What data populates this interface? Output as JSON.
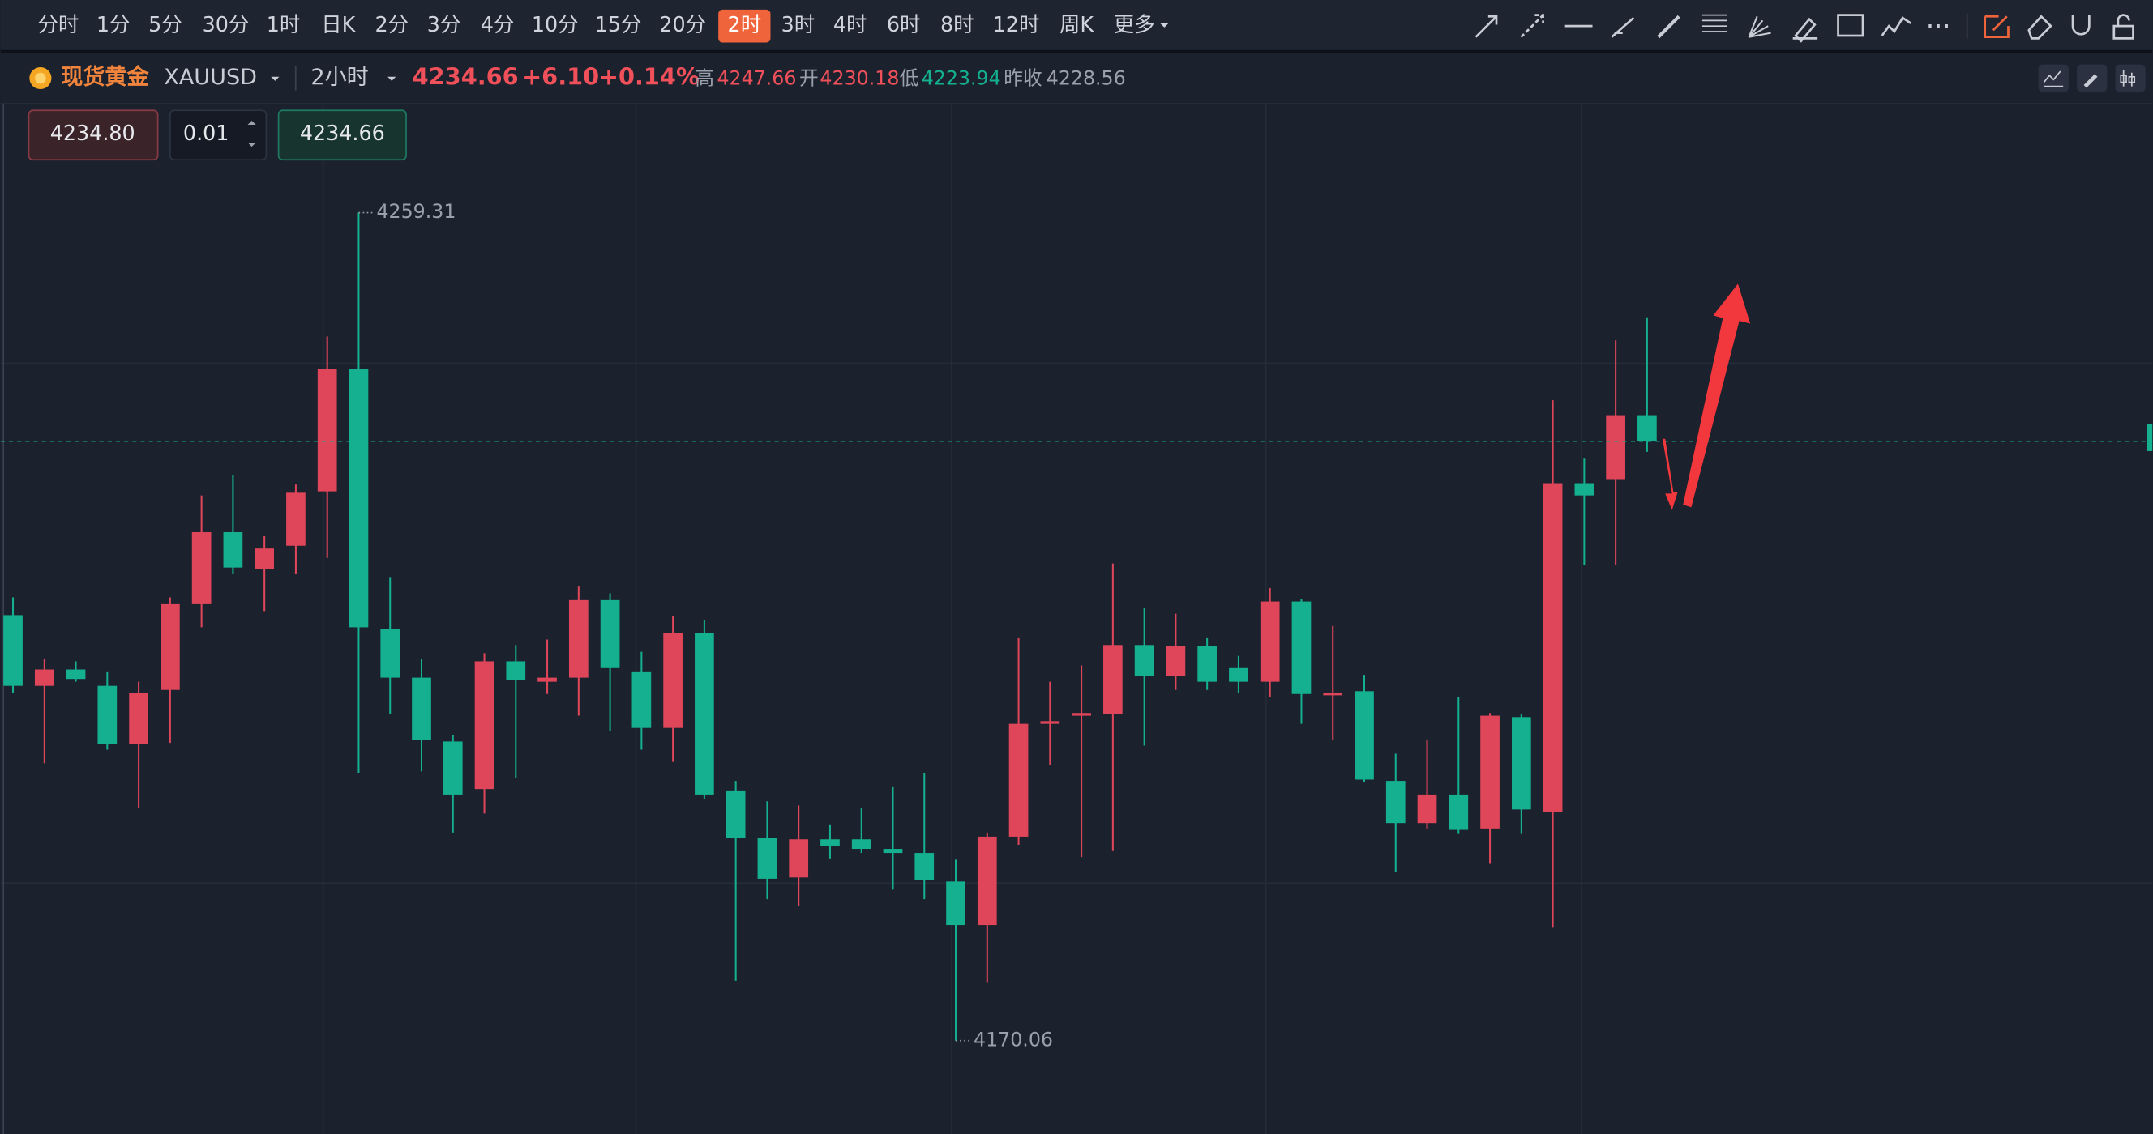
{
  "toolbar": {
    "periods": [
      "分时",
      "1分",
      "5分",
      "30分",
      "1时",
      "日K",
      "2分",
      "3分",
      "4分",
      "10分",
      "15分",
      "20分",
      "2时",
      "3时",
      "4时",
      "6时",
      "8时",
      "12时",
      "周K",
      "更多"
    ],
    "selected": 12
  },
  "quote": {
    "name": "现货黄金",
    "symbol": "XAUUSD",
    "period": "2小时",
    "last": "4234.66",
    "change": "+6.10",
    "change_pct": "+0.14%",
    "high_label": "高",
    "high": "4247.66",
    "open_label": "开",
    "open": "4230.18",
    "low_label": "低",
    "low": "4223.94",
    "prev_close_label": "昨收",
    "prev_close": "4228.56"
  },
  "order": {
    "sell": "4234.80",
    "lots": "0.01",
    "buy": "4234.66"
  },
  "chart_data": {
    "type": "candlestick",
    "up_color": "#e0465a",
    "down_color": "#14b08f",
    "ylim": [
      4160,
      4271
    ],
    "open": [
      4215.93,
      4208.31,
      4210.07,
      4208.31,
      4202.01,
      4207.87,
      4217.11,
      4224.87,
      4220.92,
      4223.41,
      4229.27,
      4242.46,
      4214.47,
      4209.19,
      4202.31,
      4197.18,
      4210.95,
      4208.75,
      4209.19,
      4217.55,
      4209.78,
      4203.77,
      4214.03,
      4197.03,
      4191.9,
      4187.65,
      4191.76,
      4191.76,
      4190.73,
      4190.29,
      4187.21,
      4182.52,
      4192.05,
      4204.21,
      4205.09,
      4205.24,
      4212.71,
      4209.34,
      4212.56,
      4210.22,
      4208.75,
      4217.4,
      4207.29,
      4207.73,
      4198.06,
      4193.51,
      4196.59,
      4192.93,
      4204.94,
      4194.69,
      4230.15,
      4230.59,
      4237.48
    ],
    "high": [
      4217.84,
      4211.24,
      4210.95,
      4209.78,
      4208.75,
      4217.84,
      4228.83,
      4231.03,
      4224.43,
      4230.0,
      4245.97,
      4259.31,
      4220.04,
      4211.24,
      4203.04,
      4211.83,
      4212.71,
      4213.3,
      4219.01,
      4218.28,
      4211.98,
      4215.79,
      4215.35,
      4198.06,
      4195.86,
      4195.42,
      4193.37,
      4195.13,
      4197.47,
      4198.94,
      4189.56,
      4192.49,
      4213.44,
      4208.75,
      4210.51,
      4221.5,
      4216.67,
      4216.08,
      4213.44,
      4211.54,
      4218.86,
      4217.69,
      4214.76,
      4209.49,
      4200.99,
      4202.45,
      4207.14,
      4205.38,
      4205.24,
      4239.09,
      4232.79,
      4245.54,
      4248.03
    ],
    "low": [
      4207.58,
      4199.96,
      4208.75,
      4201.43,
      4195.13,
      4202.16,
      4214.62,
      4220.33,
      4216.37,
      4220.33,
      4222.09,
      4198.94,
      4205.24,
      4199.08,
      4192.49,
      4194.54,
      4198.35,
      4207.43,
      4205.09,
      4203.48,
      4201.43,
      4200.11,
      4196.15,
      4176.51,
      4185.31,
      4184.57,
      4189.7,
      4190.29,
      4186.33,
      4185.31,
      4170.06,
      4176.37,
      4191.17,
      4199.81,
      4189.85,
      4190.58,
      4201.87,
      4207.87,
      4207.87,
      4207.58,
      4207.14,
      4204.21,
      4202.45,
      4197.91,
      4188.24,
      4192.93,
      4192.34,
      4189.12,
      4192.34,
      4182.23,
      4221.36,
      4221.36,
      4233.52
    ],
    "close": [
      4208.31,
      4210.07,
      4209.05,
      4202.01,
      4207.58,
      4217.11,
      4224.87,
      4221.06,
      4223.11,
      4229.12,
      4242.46,
      4214.62,
      4209.19,
      4202.45,
      4196.59,
      4210.95,
      4208.9,
      4209.19,
      4217.55,
      4210.22,
      4203.77,
      4214.03,
      4196.59,
      4191.9,
      4187.51,
      4191.76,
      4191.02,
      4190.73,
      4190.29,
      4187.36,
      4182.52,
      4192.05,
      4204.21,
      4204.5,
      4205.38,
      4212.71,
      4209.34,
      4212.56,
      4208.75,
      4208.75,
      4217.4,
      4207.43,
      4207.58,
      4198.2,
      4193.51,
      4196.59,
      4192.78,
      4205.09,
      4194.98,
      4230.15,
      4228.83,
      4237.48,
      4234.66
    ]
  }
}
